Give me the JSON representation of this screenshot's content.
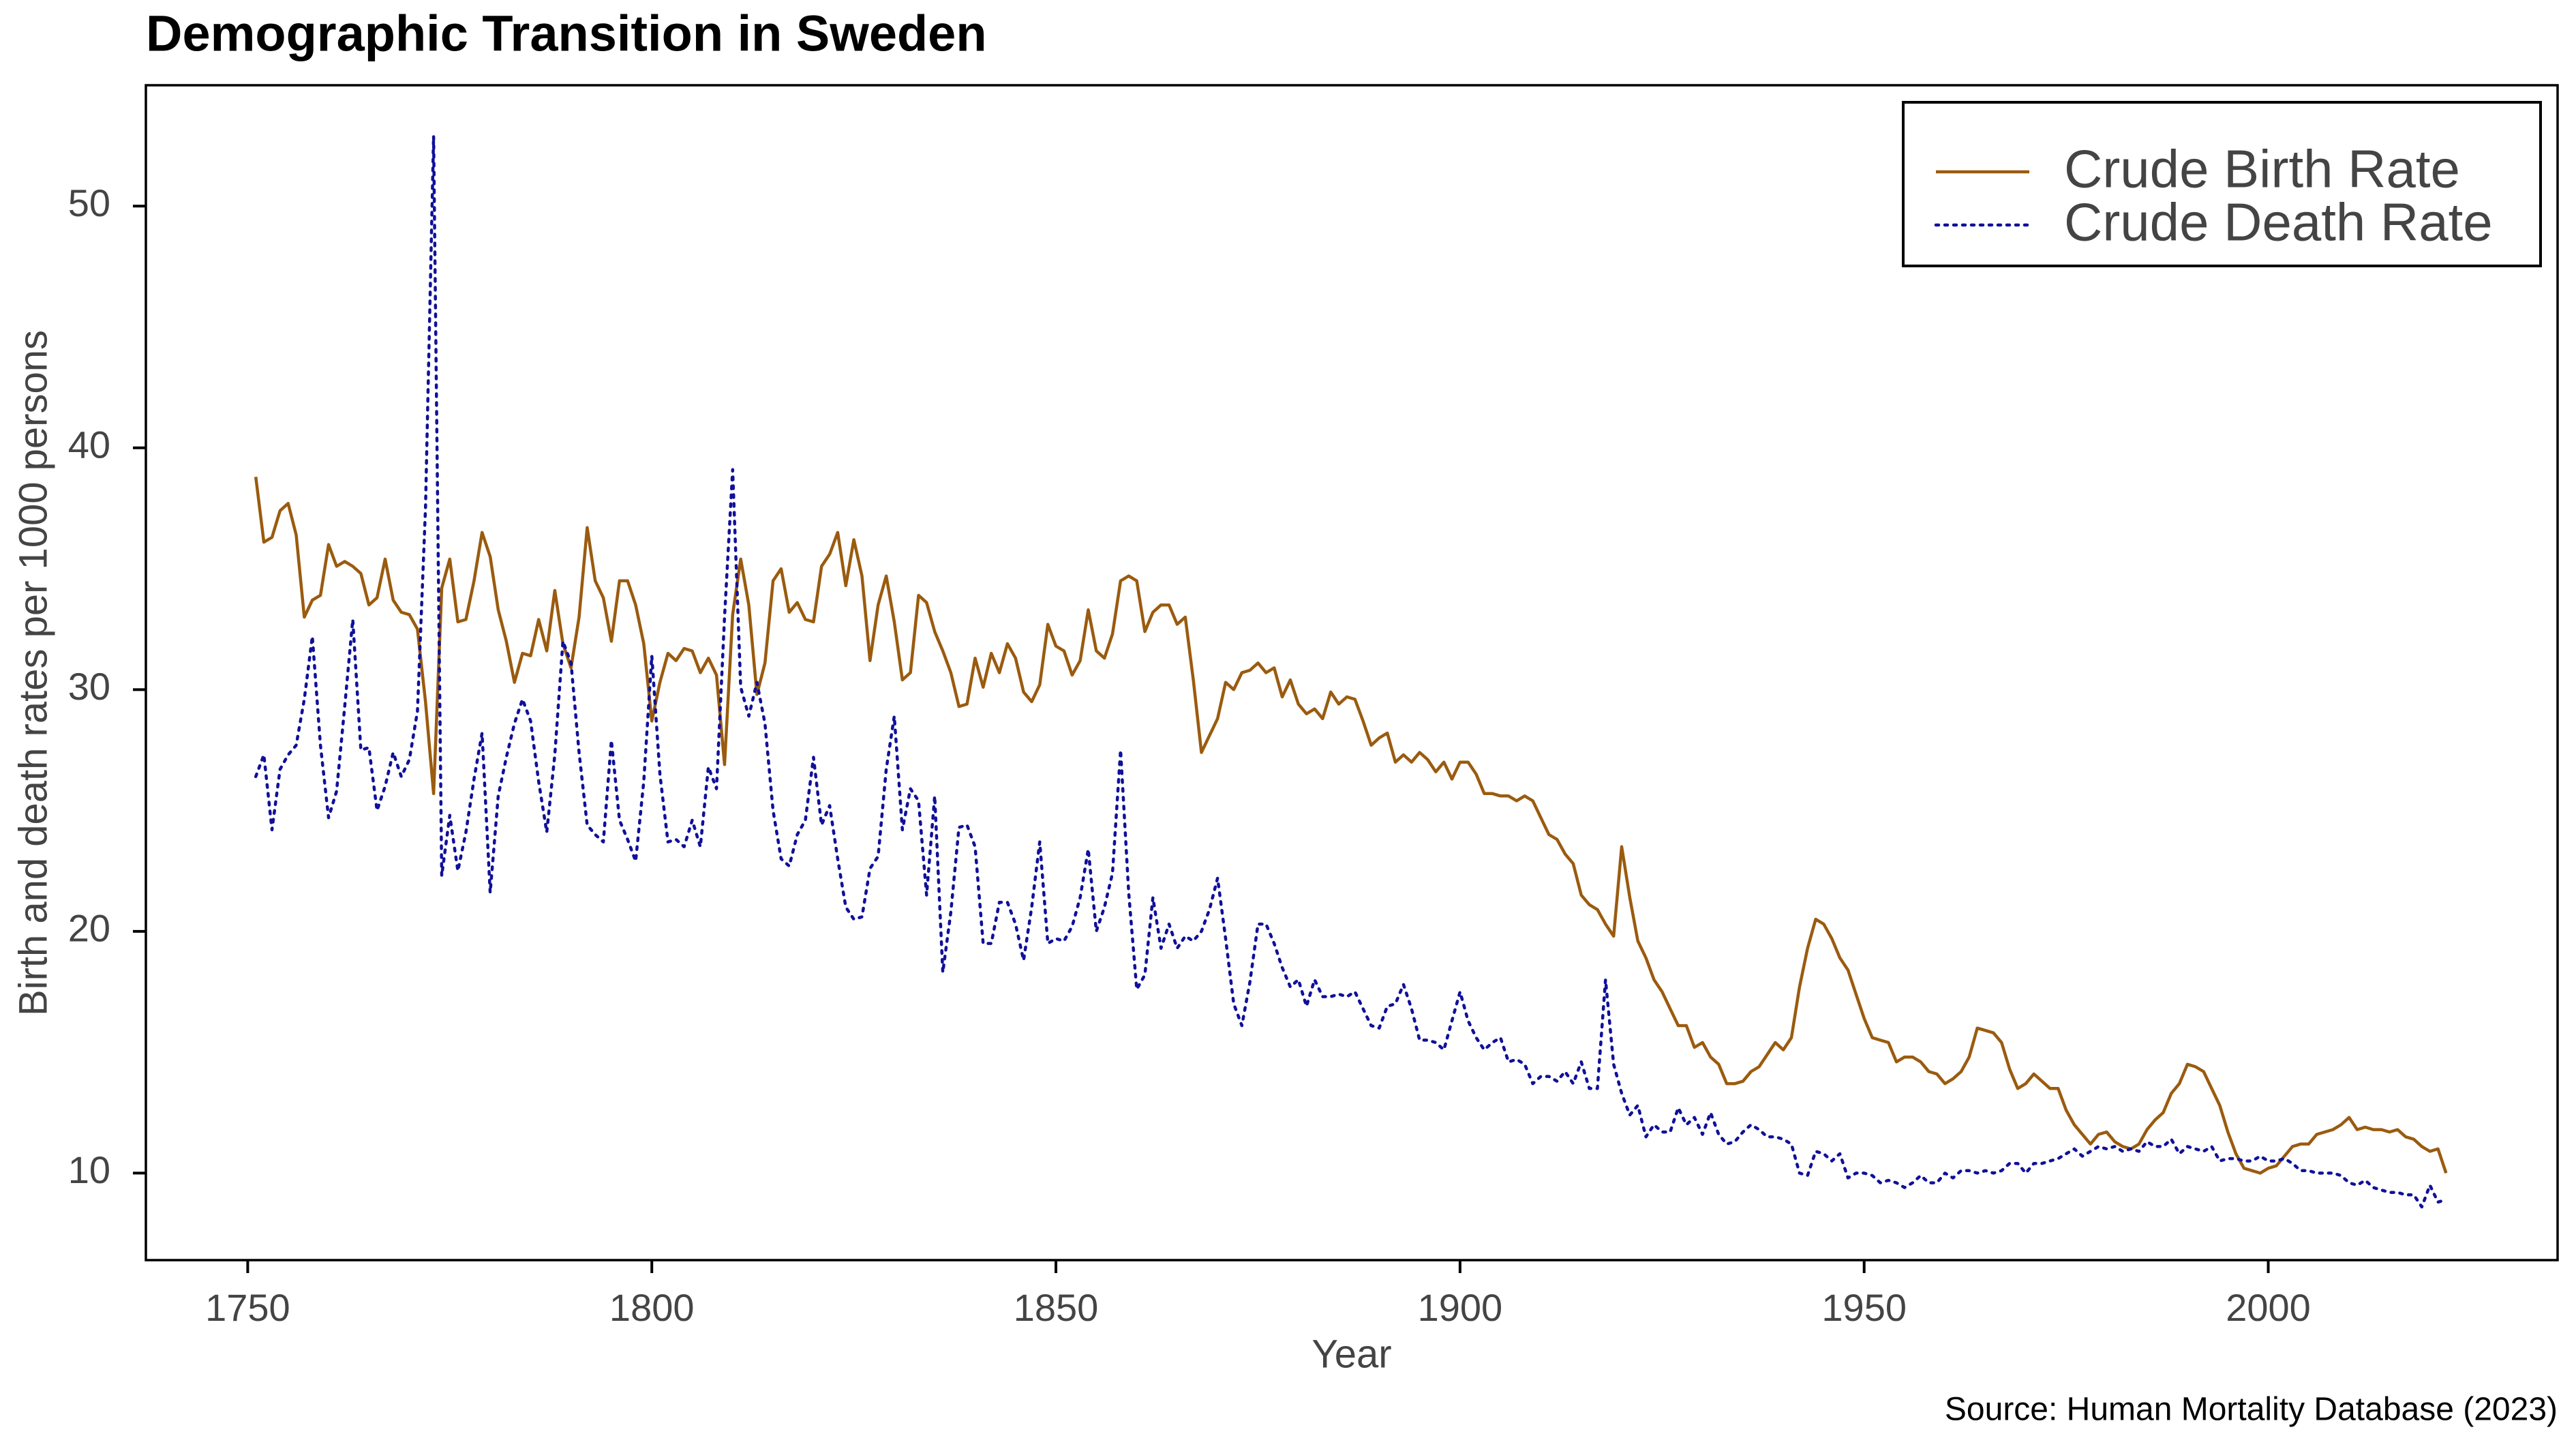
{
  "chart_data": {
    "type": "line",
    "title": "Demographic Transition in Sweden",
    "xlabel": "Year",
    "ylabel": "Birth and death rates per 1000 persons",
    "source": "Source: Human Mortality Database (2023)",
    "legend": "upper right",
    "grid": false,
    "xlim": [
      1737.4,
      2035.8
    ],
    "ylim": [
      6.4,
      55.0
    ],
    "xticks": [
      1750,
      1800,
      1850,
      1900,
      1950,
      2000
    ],
    "yticks": [
      10,
      20,
      30,
      40,
      50
    ],
    "x": [
      1751,
      1752,
      1753,
      1754,
      1755,
      1756,
      1757,
      1758,
      1759,
      1760,
      1761,
      1762,
      1763,
      1764,
      1765,
      1766,
      1767,
      1768,
      1769,
      1770,
      1771,
      1772,
      1773,
      1774,
      1775,
      1776,
      1777,
      1778,
      1779,
      1780,
      1781,
      1782,
      1783,
      1784,
      1785,
      1786,
      1787,
      1788,
      1789,
      1790,
      1791,
      1792,
      1793,
      1794,
      1795,
      1796,
      1797,
      1798,
      1799,
      1800,
      1801,
      1802,
      1803,
      1804,
      1805,
      1806,
      1807,
      1808,
      1809,
      1810,
      1811,
      1812,
      1813,
      1814,
      1815,
      1816,
      1817,
      1818,
      1819,
      1820,
      1821,
      1822,
      1823,
      1824,
      1825,
      1826,
      1827,
      1828,
      1829,
      1830,
      1831,
      1832,
      1833,
      1834,
      1835,
      1836,
      1837,
      1838,
      1839,
      1840,
      1841,
      1842,
      1843,
      1844,
      1845,
      1846,
      1847,
      1848,
      1849,
      1850,
      1851,
      1852,
      1853,
      1854,
      1855,
      1856,
      1857,
      1858,
      1859,
      1860,
      1861,
      1862,
      1863,
      1864,
      1865,
      1866,
      1867,
      1868,
      1869,
      1870,
      1871,
      1872,
      1873,
      1874,
      1875,
      1876,
      1877,
      1878,
      1879,
      1880,
      1881,
      1882,
      1883,
      1884,
      1885,
      1886,
      1887,
      1888,
      1889,
      1890,
      1891,
      1892,
      1893,
      1894,
      1895,
      1896,
      1897,
      1898,
      1899,
      1900,
      1901,
      1902,
      1903,
      1904,
      1905,
      1906,
      1907,
      1908,
      1909,
      1910,
      1911,
      1912,
      1913,
      1914,
      1915,
      1916,
      1917,
      1918,
      1919,
      1920,
      1921,
      1922,
      1923,
      1924,
      1925,
      1926,
      1927,
      1928,
      1929,
      1930,
      1931,
      1932,
      1933,
      1934,
      1935,
      1936,
      1937,
      1938,
      1939,
      1940,
      1941,
      1942,
      1943,
      1944,
      1945,
      1946,
      1947,
      1948,
      1949,
      1950,
      1951,
      1952,
      1953,
      1954,
      1955,
      1956,
      1957,
      1958,
      1959,
      1960,
      1961,
      1962,
      1963,
      1964,
      1965,
      1966,
      1967,
      1968,
      1969,
      1970,
      1971,
      1972,
      1973,
      1974,
      1975,
      1976,
      1977,
      1978,
      1979,
      1980,
      1981,
      1982,
      1983,
      1984,
      1985,
      1986,
      1987,
      1988,
      1989,
      1990,
      1991,
      1992,
      1993,
      1994,
      1995,
      1996,
      1997,
      1998,
      1999,
      2000,
      2001,
      2002,
      2003,
      2004,
      2005,
      2006,
      2007,
      2008,
      2009,
      2010,
      2011,
      2012,
      2013,
      2014,
      2015,
      2016,
      2017,
      2018,
      2019,
      2020,
      2021,
      2022
    ],
    "series": [
      {
        "name": "Crude Birth Rate",
        "color": "#9a5b0f",
        "linestyle": "solid",
        "values": [
          38.8,
          36.1,
          36.3,
          37.4,
          37.7,
          36.4,
          33.0,
          33.7,
          33.9,
          36.0,
          35.1,
          35.3,
          35.1,
          34.8,
          33.5,
          33.8,
          35.4,
          33.7,
          33.2,
          33.1,
          32.5,
          29.5,
          25.7,
          34.2,
          35.4,
          32.8,
          32.9,
          34.5,
          36.5,
          35.5,
          33.3,
          32.0,
          30.3,
          31.5,
          31.4,
          32.9,
          31.6,
          34.1,
          31.9,
          30.9,
          33.0,
          36.7,
          34.5,
          33.8,
          32.0,
          34.5,
          34.5,
          33.5,
          31.9,
          28.7,
          30.3,
          31.5,
          31.2,
          31.7,
          31.6,
          30.7,
          31.3,
          30.6,
          26.9,
          33.1,
          35.4,
          33.5,
          29.8,
          31.1,
          34.5,
          35.0,
          33.2,
          33.6,
          32.9,
          32.8,
          35.1,
          35.6,
          36.5,
          34.3,
          36.2,
          34.7,
          31.2,
          33.5,
          34.7,
          32.8,
          30.4,
          30.7,
          33.9,
          33.6,
          32.4,
          31.6,
          30.7,
          29.3,
          29.4,
          31.3,
          30.1,
          31.5,
          30.7,
          31.9,
          31.3,
          29.9,
          29.5,
          30.2,
          32.7,
          31.8,
          31.6,
          30.6,
          31.2,
          33.3,
          31.6,
          31.3,
          32.3,
          34.5,
          34.7,
          34.5,
          32.4,
          33.2,
          33.5,
          33.5,
          32.7,
          33.0,
          30.4,
          27.4,
          28.1,
          28.8,
          30.3,
          30.0,
          30.7,
          30.8,
          31.1,
          30.7,
          30.9,
          29.7,
          30.4,
          29.4,
          29.0,
          29.2,
          28.8,
          29.9,
          29.4,
          29.7,
          29.6,
          28.7,
          27.7,
          28.0,
          28.2,
          27.0,
          27.3,
          27.0,
          27.4,
          27.1,
          26.6,
          27.0,
          26.3,
          27.0,
          27.0,
          26.5,
          25.7,
          25.7,
          25.6,
          25.6,
          25.4,
          25.6,
          25.4,
          24.7,
          24.0,
          23.8,
          23.2,
          22.8,
          21.5,
          21.1,
          20.9,
          20.3,
          19.8,
          23.5,
          21.4,
          19.6,
          18.9,
          18.0,
          17.5,
          16.8,
          16.1,
          16.1,
          15.2,
          15.4,
          14.8,
          14.5,
          13.7,
          13.7,
          13.8,
          14.2,
          14.4,
          14.9,
          15.4,
          15.1,
          15.6,
          17.7,
          19.3,
          20.5,
          20.3,
          19.7,
          18.9,
          18.4,
          17.4,
          16.4,
          15.6,
          15.5,
          15.4,
          14.6,
          14.8,
          14.8,
          14.6,
          14.2,
          14.1,
          13.7,
          13.9,
          14.2,
          14.8,
          16.0,
          15.9,
          15.8,
          15.4,
          14.3,
          13.5,
          13.7,
          14.1,
          13.8,
          13.5,
          13.5,
          12.6,
          12.0,
          11.6,
          11.2,
          11.6,
          11.7,
          11.3,
          11.1,
          11.0,
          11.2,
          11.8,
          12.2,
          12.5,
          13.3,
          13.7,
          14.5,
          14.4,
          14.2,
          13.5,
          12.8,
          11.7,
          10.8,
          10.2,
          10.1,
          10.0,
          10.2,
          10.3,
          10.7,
          11.1,
          11.2,
          11.2,
          11.6,
          11.7,
          11.8,
          12.0,
          12.3,
          11.8,
          11.9,
          11.8,
          11.8,
          11.7,
          11.8,
          11.5,
          11.4,
          11.1,
          10.9,
          11.0,
          10.0
        ]
      },
      {
        "name": "Crude Death Rate",
        "color": "#10109a",
        "linestyle": "dotted",
        "values": [
          26.4,
          27.3,
          24.2,
          26.7,
          27.3,
          27.7,
          29.6,
          32.2,
          27.7,
          24.7,
          25.8,
          29.3,
          32.9,
          27.5,
          27.6,
          25.0,
          26.0,
          27.4,
          26.4,
          27.1,
          29.1,
          37.5,
          52.9,
          22.3,
          24.8,
          22.5,
          24.1,
          26.3,
          28.2,
          21.6,
          25.6,
          27.2,
          28.6,
          29.6,
          28.7,
          26.2,
          24.1,
          27.3,
          32.0,
          31.1,
          27.4,
          24.4,
          24.0,
          23.7,
          27.9,
          24.6,
          23.8,
          22.9,
          26.2,
          31.4,
          26.5,
          23.7,
          23.8,
          23.5,
          24.6,
          23.5,
          26.8,
          25.9,
          33.0,
          39.1,
          30.1,
          28.9,
          30.3,
          28.6,
          25.0,
          23.0,
          22.7,
          24.0,
          24.6,
          27.2,
          24.4,
          25.2,
          23.0,
          21.0,
          20.5,
          20.6,
          22.6,
          23.1,
          26.7,
          28.9,
          24.2,
          25.9,
          25.4,
          21.5,
          25.6,
          18.3,
          20.8,
          24.3,
          24.4,
          23.5,
          19.5,
          19.5,
          21.2,
          21.2,
          20.3,
          18.8,
          21.0,
          23.7,
          19.5,
          19.7,
          19.6,
          20.2,
          21.4,
          23.4,
          20.0,
          21.0,
          22.4,
          27.5,
          21.6,
          17.6,
          18.2,
          21.4,
          19.3,
          20.3,
          19.3,
          19.8,
          19.6,
          20.0,
          20.9,
          22.2,
          19.7,
          17.0,
          16.1,
          17.9,
          20.3,
          20.3,
          19.5,
          18.5,
          17.7,
          18.0,
          16.9,
          18.0,
          17.3,
          17.3,
          17.4,
          17.3,
          17.5,
          16.8,
          16.1,
          16.0,
          16.9,
          17.0,
          17.8,
          16.8,
          15.5,
          15.5,
          15.4,
          15.1,
          16.3,
          17.5,
          16.3,
          15.6,
          15.1,
          15.4,
          15.6,
          14.6,
          14.7,
          14.5,
          13.7,
          14.0,
          14.0,
          13.8,
          14.2,
          13.7,
          14.6,
          13.5,
          13.5,
          18.0,
          14.5,
          13.3,
          12.4,
          12.8,
          11.5,
          12.0,
          11.7,
          11.7,
          12.7,
          12.0,
          12.3,
          11.6,
          12.5,
          11.6,
          11.2,
          11.3,
          11.7,
          12.0,
          11.8,
          11.5,
          11.5,
          11.4,
          11.2,
          10.0,
          9.9,
          10.9,
          10.8,
          10.5,
          10.8,
          9.8,
          10.0,
          10.0,
          9.9,
          9.6,
          9.7,
          9.6,
          9.4,
          9.6,
          9.9,
          9.6,
          9.6,
          10.0,
          9.8,
          10.1,
          10.1,
          10.0,
          10.1,
          10.0,
          10.1,
          10.4,
          10.4,
          10.0,
          10.4,
          10.4,
          10.5,
          10.6,
          10.8,
          11.0,
          10.7,
          10.9,
          11.1,
          11.0,
          11.1,
          10.9,
          11.0,
          10.9,
          11.3,
          11.1,
          11.1,
          11.4,
          10.8,
          11.1,
          11.0,
          10.9,
          11.1,
          10.5,
          10.6,
          10.6,
          10.5,
          10.5,
          10.7,
          10.5,
          10.5,
          10.6,
          10.4,
          10.1,
          10.1,
          10.0,
          10.0,
          10.0,
          9.9,
          9.6,
          9.5,
          9.7,
          9.4,
          9.3,
          9.2,
          9.2,
          9.1,
          9.1,
          8.6,
          9.5,
          8.8,
          8.9
        ]
      }
    ]
  }
}
